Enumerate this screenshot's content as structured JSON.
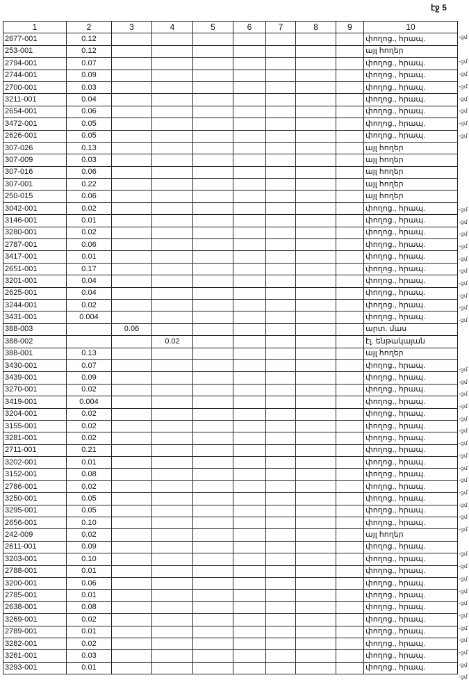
{
  "page_label": "էջ 5",
  "columns": [
    "1",
    "2",
    "3",
    "4",
    "5",
    "6",
    "7",
    "8",
    "9",
    "10"
  ],
  "rows": [
    [
      "2677-001",
      "0.12",
      "",
      "",
      "",
      "",
      "",
      "",
      "",
      "փողոց., հրապ."
    ],
    [
      "253-001",
      "0.12",
      "",
      "",
      "",
      "",
      "",
      "",
      "",
      "այլ հողեր"
    ],
    [
      "2794-001",
      "0.07",
      "",
      "",
      "",
      "",
      "",
      "",
      "",
      "փողոց., հրապ."
    ],
    [
      "2744-001",
      "0.09",
      "",
      "",
      "",
      "",
      "",
      "",
      "",
      "փողոց., հրապ."
    ],
    [
      "2700-001",
      "0.03",
      "",
      "",
      "",
      "",
      "",
      "",
      "",
      "փողոց., հրապ."
    ],
    [
      "3211-001",
      "0.04",
      "",
      "",
      "",
      "",
      "",
      "",
      "",
      "փողոց., հրապ."
    ],
    [
      "2654-001",
      "0.06",
      "",
      "",
      "",
      "",
      "",
      "",
      "",
      "փողոց., հրապ."
    ],
    [
      "3472-001",
      "0.05",
      "",
      "",
      "",
      "",
      "",
      "",
      "",
      "փողոց., հրապ."
    ],
    [
      "2626-001",
      "0.05",
      "",
      "",
      "",
      "",
      "",
      "",
      "",
      "փողոց., հրապ."
    ],
    [
      "307-026",
      "0.13",
      "",
      "",
      "",
      "",
      "",
      "",
      "",
      "այլ հողեր"
    ],
    [
      "307-009",
      "0.03",
      "",
      "",
      "",
      "",
      "",
      "",
      "",
      "այլ հողեր"
    ],
    [
      "307-016",
      "0.06",
      "",
      "",
      "",
      "",
      "",
      "",
      "",
      "այլ հողեր"
    ],
    [
      "307-001",
      "0.22",
      "",
      "",
      "",
      "",
      "",
      "",
      "",
      "այլ հողեր"
    ],
    [
      "250-015",
      "0.06",
      "",
      "",
      "",
      "",
      "",
      "",
      "",
      "այլ հողեր"
    ],
    [
      "3042-001",
      "0.02",
      "",
      "",
      "",
      "",
      "",
      "",
      "",
      "փողոց., հրապ."
    ],
    [
      "3146-001",
      "0.01",
      "",
      "",
      "",
      "",
      "",
      "",
      "",
      "փողոց., հրապ."
    ],
    [
      "3280-001",
      "0.02",
      "",
      "",
      "",
      "",
      "",
      "",
      "",
      "փողոց., հրապ."
    ],
    [
      "2787-001",
      "0.06",
      "",
      "",
      "",
      "",
      "",
      "",
      "",
      "փողոց., հրապ."
    ],
    [
      "3417-001",
      "0.01",
      "",
      "",
      "",
      "",
      "",
      "",
      "",
      "փողոց., հրապ."
    ],
    [
      "2651-001",
      "0.17",
      "",
      "",
      "",
      "",
      "",
      "",
      "",
      "փողոց., հրապ."
    ],
    [
      "3201-001",
      "0.04",
      "",
      "",
      "",
      "",
      "",
      "",
      "",
      "փողոց., հրապ."
    ],
    [
      "2625-001",
      "0.04",
      "",
      "",
      "",
      "",
      "",
      "",
      "",
      "փողոց., հրապ."
    ],
    [
      "3244-001",
      "0.02",
      "",
      "",
      "",
      "",
      "",
      "",
      "",
      "փողոց., հրապ."
    ],
    [
      "3431-001",
      "0.004",
      "",
      "",
      "",
      "",
      "",
      "",
      "",
      "փողոց., հրապ."
    ],
    [
      "388-003",
      "",
      "0.06",
      "",
      "",
      "",
      "",
      "",
      "",
      "արտ. մաս"
    ],
    [
      "388-002",
      "",
      "",
      "0.02",
      "",
      "",
      "",
      "",
      "",
      "էլ. ենթակայան"
    ],
    [
      "388-001",
      "0.13",
      "",
      "",
      "",
      "",
      "",
      "",
      "",
      "այլ հողեր"
    ],
    [
      "3430-001",
      "0.07",
      "",
      "",
      "",
      "",
      "",
      "",
      "",
      "փողոց., հրապ."
    ],
    [
      "3439-001",
      "0.09",
      "",
      "",
      "",
      "",
      "",
      "",
      "",
      "փողոց., հրապ."
    ],
    [
      "3270-001",
      "0.02",
      "",
      "",
      "",
      "",
      "",
      "",
      "",
      "փողոց., հրապ."
    ],
    [
      "3419-001",
      "0.004",
      "",
      "",
      "",
      "",
      "",
      "",
      "",
      "փողոց., հրապ."
    ],
    [
      "3204-001",
      "0.02",
      "",
      "",
      "",
      "",
      "",
      "",
      "",
      "փողոց., հրապ."
    ],
    [
      "3155-001",
      "0.02",
      "",
      "",
      "",
      "",
      "",
      "",
      "",
      "փողոց., հրապ."
    ],
    [
      "3281-001",
      "0.02",
      "",
      "",
      "",
      "",
      "",
      "",
      "",
      "փողոց., հրապ."
    ],
    [
      "2711-001",
      "0.21",
      "",
      "",
      "",
      "",
      "",
      "",
      "",
      "փողոց., հրապ."
    ],
    [
      "3202-001",
      "0.01",
      "",
      "",
      "",
      "",
      "",
      "",
      "",
      "փողոց., հրապ."
    ],
    [
      "3152-001",
      "0.08",
      "",
      "",
      "",
      "",
      "",
      "",
      "",
      "փողոց., հրապ."
    ],
    [
      "2786-001",
      "0.02",
      "",
      "",
      "",
      "",
      "",
      "",
      "",
      "փողոց., հրապ."
    ],
    [
      "3250-001",
      "0.05",
      "",
      "",
      "",
      "",
      "",
      "",
      "",
      "փողոց., հրապ."
    ],
    [
      "3295-001",
      "0.05",
      "",
      "",
      "",
      "",
      "",
      "",
      "",
      "փողոց., հրապ."
    ],
    [
      "2656-001",
      "0.10",
      "",
      "",
      "",
      "",
      "",
      "",
      "",
      "փողոց., հրապ."
    ],
    [
      "242-009",
      "0.02",
      "",
      "",
      "",
      "",
      "",
      "",
      "",
      "այլ հողեր"
    ],
    [
      "2611-001",
      "0.09",
      "",
      "",
      "",
      "",
      "",
      "",
      "",
      "փողոց., հրապ."
    ],
    [
      "3203-001",
      "0.10",
      "",
      "",
      "",
      "",
      "",
      "",
      "",
      "փողոց., հրապ."
    ],
    [
      "2788-001",
      "0.01",
      "",
      "",
      "",
      "",
      "",
      "",
      "",
      "փողոց., հրապ."
    ],
    [
      "3200-001",
      "0.06",
      "",
      "",
      "",
      "",
      "",
      "",
      "",
      "փողոց., հրապ."
    ],
    [
      "2785-001",
      "0.01",
      "",
      "",
      "",
      "",
      "",
      "",
      "",
      "փողոց., հրապ."
    ],
    [
      "2638-001",
      "0.08",
      "",
      "",
      "",
      "",
      "",
      "",
      "",
      "փողոց., հրապ."
    ],
    [
      "3269-001",
      "0.02",
      "",
      "",
      "",
      "",
      "",
      "",
      "",
      "փողոց., հրապ."
    ],
    [
      "2789-001",
      "0.01",
      "",
      "",
      "",
      "",
      "",
      "",
      "",
      "փողոց., հրապ."
    ],
    [
      "3282-001",
      "0.02",
      "",
      "",
      "",
      "",
      "",
      "",
      "",
      "փողոց., հրապ."
    ],
    [
      "3261-001",
      "0.03",
      "",
      "",
      "",
      "",
      "",
      "",
      "",
      "փողոց., հրապ."
    ],
    [
      "3293-001",
      "0.01",
      "",
      "",
      "",
      "",
      "",
      "",
      "",
      "փողոց., հրապ."
    ]
  ],
  "margin_mark": "-ցմ"
}
